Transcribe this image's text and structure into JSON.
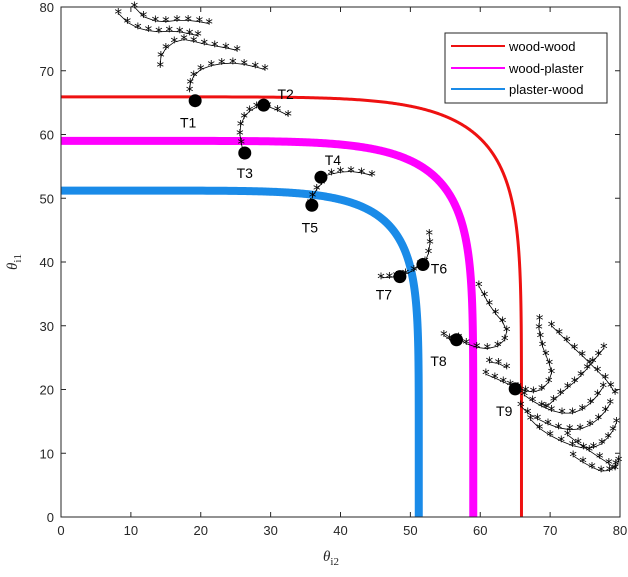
{
  "chart_data": {
    "type": "line",
    "xlabel": "θ",
    "xlabel_sub": "i2",
    "ylabel": "θ",
    "ylabel_sub": "i1",
    "xlim": [
      0,
      80
    ],
    "ylim": [
      0,
      80
    ],
    "xticks": [
      0,
      10,
      20,
      30,
      40,
      50,
      60,
      70,
      80
    ],
    "yticks": [
      0,
      10,
      20,
      30,
      40,
      50,
      60,
      70,
      80
    ],
    "grid": false,
    "legend_position": "top-right",
    "series": [
      {
        "name": "wood-wood",
        "color": "#ee1111",
        "radius": 65.9,
        "exponent": 7
      },
      {
        "name": "wood-plaster",
        "color": "#ff00ff",
        "radius": 59.0,
        "exponent": 7
      },
      {
        "name": "plaster-wood",
        "color": "#1a8be8",
        "radius": 51.2,
        "exponent": 7
      }
    ],
    "points": [
      {
        "label": "T1",
        "x": 19.2,
        "y": 65.3
      },
      {
        "label": "T2",
        "x": 29.0,
        "y": 64.6
      },
      {
        "label": "T3",
        "x": 26.3,
        "y": 57.1
      },
      {
        "label": "T4",
        "x": 37.2,
        "y": 53.3
      },
      {
        "label": "T5",
        "x": 35.9,
        "y": 48.9
      },
      {
        "label": "T6",
        "x": 51.8,
        "y": 39.6
      },
      {
        "label": "T7",
        "x": 48.5,
        "y": 37.7
      },
      {
        "label": "T8",
        "x": 56.6,
        "y": 27.8
      },
      {
        "label": "T9",
        "x": 65.0,
        "y": 20.1
      }
    ],
    "trajectories": [
      [
        [
          8.2,
          79
        ],
        [
          9.5,
          77.6
        ],
        [
          11,
          76.7
        ],
        [
          12.5,
          76.3
        ],
        [
          14,
          76.1
        ],
        [
          15.5,
          76.2
        ],
        [
          17,
          76.1
        ],
        [
          18.4,
          75.8
        ],
        [
          19.6,
          75.5
        ]
      ],
      [
        [
          10.5,
          80
        ],
        [
          11.8,
          78.5
        ],
        [
          13.5,
          77.8
        ],
        [
          15,
          77.7
        ],
        [
          16.6,
          77.9
        ],
        [
          18.2,
          77.9
        ],
        [
          19.8,
          77.7
        ],
        [
          21.2,
          77.4
        ]
      ],
      [
        [
          14.2,
          70.7
        ],
        [
          14.3,
          72.2
        ],
        [
          15,
          73.5
        ],
        [
          16.2,
          74.5
        ],
        [
          17.6,
          74.9
        ],
        [
          19,
          74.6
        ],
        [
          20.5,
          74.2
        ],
        [
          22,
          73.9
        ],
        [
          23.6,
          73.6
        ],
        [
          25.2,
          73.2
        ]
      ],
      [
        [
          18.4,
          66.8
        ],
        [
          18.5,
          68
        ],
        [
          19,
          69.2
        ],
        [
          20,
          70.2
        ],
        [
          21.5,
          70.8
        ],
        [
          23,
          71.1
        ],
        [
          24.6,
          71.2
        ],
        [
          26.2,
          71
        ],
        [
          27.8,
          70.6
        ],
        [
          29.2,
          70.2
        ]
      ],
      [
        [
          29.6,
          64.4
        ],
        [
          31,
          63.8
        ],
        [
          32.5,
          63
        ]
      ],
      [
        [
          26.1,
          57.2
        ],
        [
          25.8,
          58.6
        ],
        [
          25.6,
          60
        ],
        [
          25.7,
          61.4
        ],
        [
          26.2,
          62.7
        ],
        [
          27,
          63.7
        ],
        [
          28,
          64.3
        ]
      ],
      [
        [
          37.3,
          53.4
        ],
        [
          38.7,
          53.8
        ],
        [
          40,
          54.1
        ],
        [
          41.5,
          54.2
        ],
        [
          43,
          54
        ],
        [
          44.5,
          53.6
        ]
      ],
      [
        [
          35.7,
          49.2
        ],
        [
          36,
          50.3
        ],
        [
          36.6,
          51.4
        ],
        [
          37.3,
          52.3
        ]
      ],
      [
        [
          45.8,
          37.5
        ],
        [
          47,
          37.6
        ],
        [
          48,
          37.7
        ],
        [
          49.3,
          38.1
        ],
        [
          50.5,
          38.7
        ],
        [
          51.4,
          39.6
        ]
      ],
      [
        [
          52.1,
          40
        ],
        [
          52.6,
          41.4
        ],
        [
          52.8,
          42.9
        ],
        [
          52.7,
          44.3
        ]
      ],
      [
        [
          56.9,
          28.1
        ],
        [
          58,
          27.2
        ],
        [
          59.5,
          26.6
        ],
        [
          61,
          26.4
        ],
        [
          62.5,
          26.8
        ],
        [
          63.5,
          27.8
        ],
        [
          63.8,
          29.2
        ],
        [
          63.2,
          30.6
        ],
        [
          62.2,
          31.9
        ],
        [
          61.3,
          33.3
        ],
        [
          60.6,
          34.7
        ],
        [
          59.8,
          36.2
        ]
      ],
      [
        [
          54.8,
          28.5
        ],
        [
          55.6,
          27.9
        ],
        [
          56.4,
          27.5
        ]
      ],
      [
        [
          61.3,
          24.3
        ],
        [
          62.6,
          24.1
        ],
        [
          63.8,
          23.4
        ]
      ],
      [
        [
          65.4,
          20.3
        ],
        [
          66.5,
          19.8
        ],
        [
          67.6,
          19.6
        ],
        [
          68.8,
          20
        ],
        [
          69.8,
          21.2
        ],
        [
          70.2,
          22.6
        ],
        [
          69.9,
          24
        ],
        [
          69.4,
          25.4
        ],
        [
          68.9,
          26.8
        ],
        [
          68.6,
          28.2
        ],
        [
          68.4,
          29.6
        ],
        [
          68.5,
          31
        ]
      ],
      [
        [
          60.8,
          22.4
        ],
        [
          62.1,
          21.8
        ],
        [
          63.3,
          21.2
        ],
        [
          64.3,
          20.7
        ]
      ],
      [
        [
          66.3,
          19.1
        ],
        [
          67.5,
          18.2
        ],
        [
          68.8,
          17.4
        ],
        [
          70.2,
          16.7
        ],
        [
          71.7,
          16.3
        ],
        [
          73.2,
          16.3
        ],
        [
          74.6,
          16.9
        ],
        [
          75.8,
          17.9
        ],
        [
          76.8,
          19.1
        ],
        [
          77.6,
          20.4
        ]
      ],
      [
        [
          65.8,
          17.4
        ],
        [
          66.8,
          16.3
        ],
        [
          68.2,
          15.4
        ],
        [
          69.7,
          14.6
        ],
        [
          71.2,
          14
        ],
        [
          72.8,
          13.7
        ],
        [
          74.3,
          13.8
        ],
        [
          75.7,
          14.4
        ],
        [
          76.9,
          15.4
        ],
        [
          77.9,
          16.6
        ],
        [
          78.6,
          17.8
        ]
      ],
      [
        [
          67.2,
          15.3
        ],
        [
          68.5,
          13.9
        ],
        [
          70,
          12.8
        ],
        [
          71.6,
          11.9
        ],
        [
          73.2,
          11.2
        ],
        [
          74.8,
          10.8
        ],
        [
          76.2,
          10.9
        ],
        [
          77.4,
          11.5
        ],
        [
          78.3,
          12.5
        ],
        [
          79,
          13.6
        ],
        [
          79.5,
          14.8
        ]
      ],
      [
        [
          69.4,
          17.2
        ],
        [
          70.5,
          18.3
        ],
        [
          71.5,
          19.3
        ],
        [
          72.5,
          20.3
        ],
        [
          73.5,
          21.2
        ],
        [
          74.4,
          22.2
        ],
        [
          75.3,
          23.3
        ],
        [
          76.1,
          24.3
        ],
        [
          76.9,
          25.4
        ],
        [
          77.7,
          26.5
        ]
      ],
      [
        [
          70.2,
          30
        ],
        [
          71.3,
          28.8
        ],
        [
          72.4,
          27.6
        ],
        [
          73.5,
          26.4
        ],
        [
          74.6,
          25.3
        ],
        [
          75.7,
          24.1
        ],
        [
          76.8,
          22.9
        ],
        [
          77.9,
          21.7
        ],
        [
          78.7,
          20.5
        ],
        [
          79.3,
          19.4
        ]
      ],
      [
        [
          72.5,
          12.9
        ],
        [
          74,
          11.6
        ],
        [
          75.6,
          10.4
        ],
        [
          77.1,
          9.3
        ],
        [
          78.4,
          8.4
        ],
        [
          79.3,
          7.5
        ],
        [
          79.8,
          8.8
        ]
      ],
      [
        [
          73.3,
          9.6
        ],
        [
          74.7,
          8.6
        ],
        [
          76,
          7.8
        ],
        [
          77.3,
          7.2
        ],
        [
          78.5,
          7.3
        ],
        [
          79.4,
          8.2
        ]
      ]
    ]
  }
}
